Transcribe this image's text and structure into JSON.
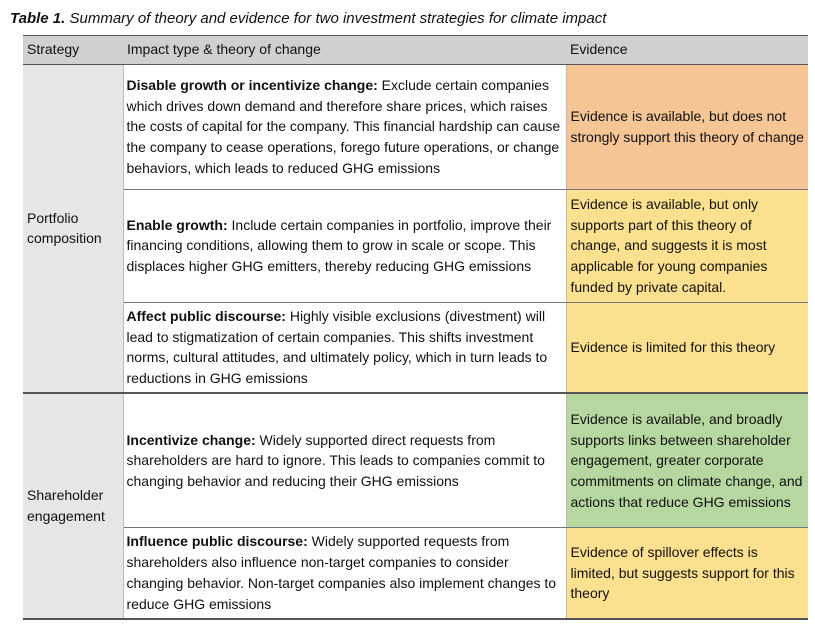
{
  "caption": {
    "label": "Table 1.",
    "text": "Summary of theory and evidence for two investment strategies for climate impact"
  },
  "headers": [
    "Strategy",
    "Impact type & theory of change",
    "Evidence"
  ],
  "groups": [
    {
      "strategy": "Portfolio composition",
      "rows": [
        {
          "impact_title": "Disable growth or incentivize change:",
          "impact_text": "Exclude certain companies which drives down demand and therefore share prices, which raises the costs of capital for the company. This financial hardship can cause the company to cease operations, forego future operations, or change behaviors, which leads to reduced GHG emissions",
          "evidence": "Evidence is available, but does not strongly support this theory of change",
          "evidence_color": "#f5c595"
        },
        {
          "impact_title": "Enable growth:",
          "impact_text": "Include certain companies in portfolio, improve their financing conditions, allowing them to grow in scale or scope. This displaces higher GHG emitters, thereby reducing GHG emissions",
          "evidence": "Evidence is available, but only supports part of this theory of change, and suggests it is most applicable for young companies funded by private capital.",
          "evidence_color": "#fbe08f"
        },
        {
          "impact_title": "Affect public discourse:",
          "impact_text": "Highly visible exclusions (divestment) will lead to stigmatization of certain companies. This shifts investment norms, cultural attitudes, and ultimately policy, which in turn leads to reductions in GHG emissions",
          "evidence": "Evidence is limited for this theory",
          "evidence_color": "#fbe08f"
        }
      ]
    },
    {
      "strategy": "Shareholder engagement",
      "rows": [
        {
          "impact_title": "Incentivize change:",
          "impact_text": "Widely supported direct requests from shareholders are hard to ignore. This leads to companies commit to changing behavior and reducing their GHG emissions",
          "evidence": "Evidence is available, and broadly supports links between shareholder engagement, greater corporate commitments on climate change, and actions that reduce GHG emissions",
          "evidence_color": "#b6d7a0"
        },
        {
          "impact_title": "Influence public discourse:",
          "impact_text": "Widely supported requests from shareholders also influence non-target companies to consider changing behavior. Non-target companies also implement changes to reduce GHG emissions",
          "evidence": "Evidence of spillover effects is limited, but suggests support for this theory",
          "evidence_color": "#fbe08f"
        }
      ]
    }
  ]
}
